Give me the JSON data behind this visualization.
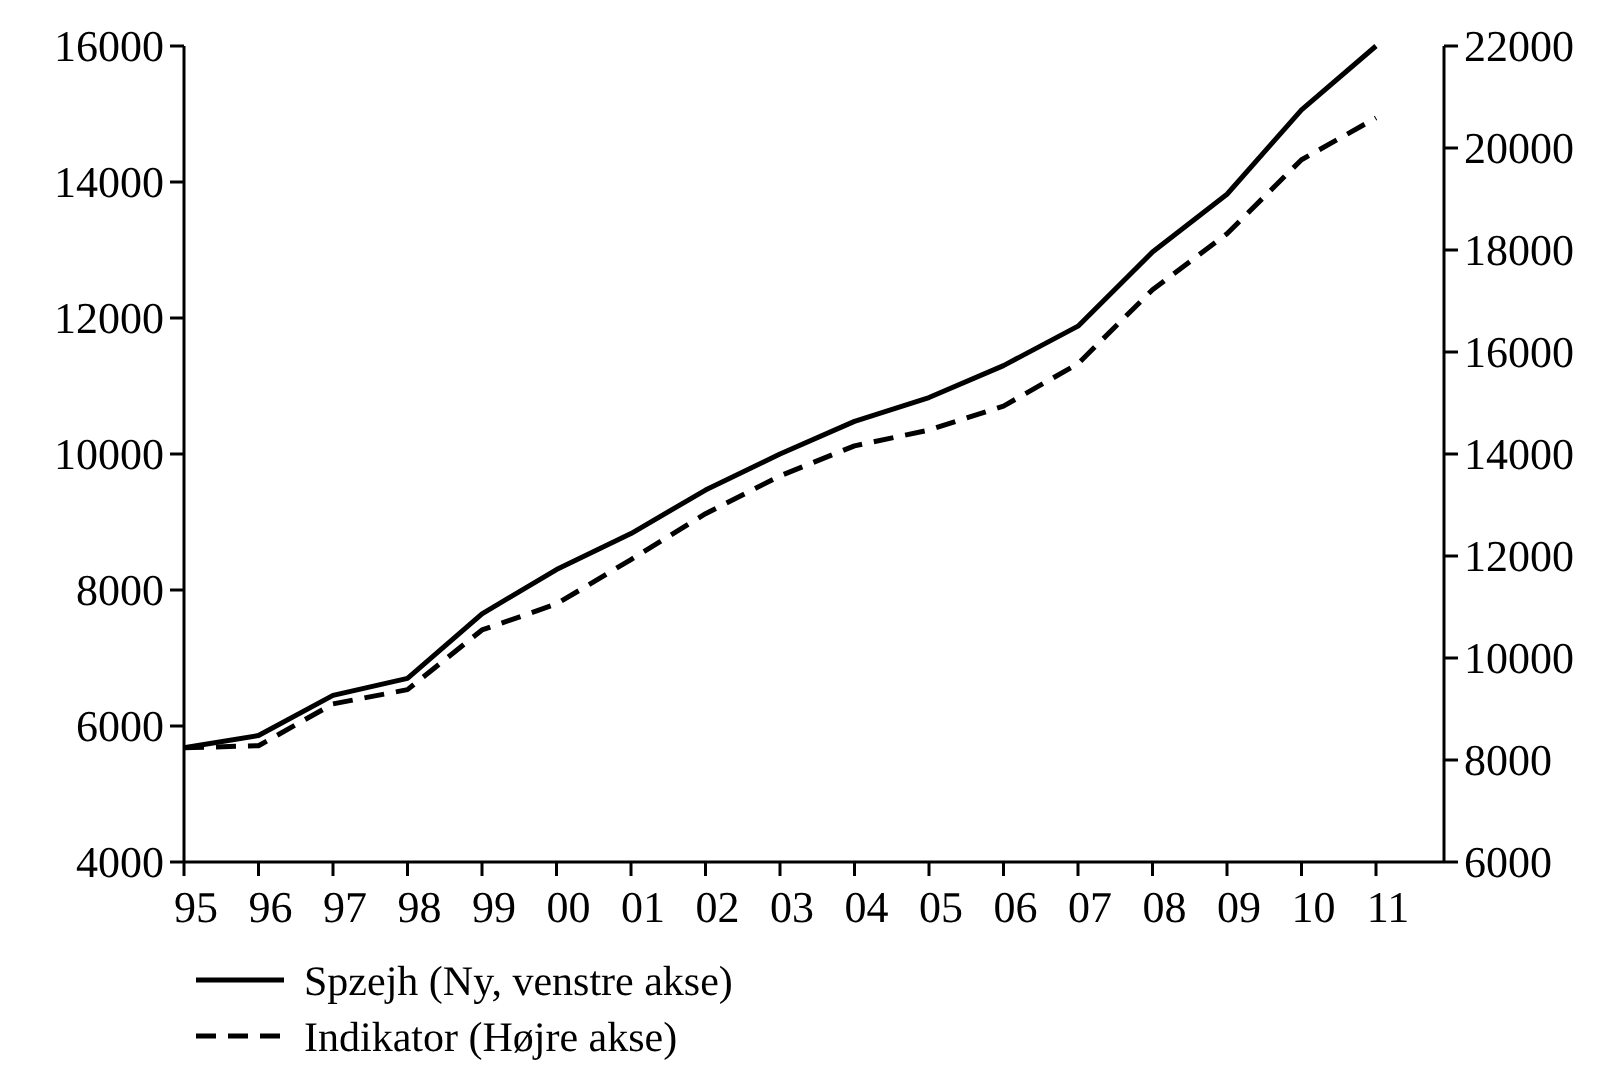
{
  "chart_data": {
    "type": "line",
    "categories": [
      "95",
      "96",
      "97",
      "98",
      "99",
      "00",
      "01",
      "02",
      "03",
      "04",
      "05",
      "06",
      "07",
      "08",
      "09",
      "10",
      "11"
    ],
    "series": [
      {
        "name": "Spzejh (Ny, venstre akse)",
        "color": "#000000",
        "line_style": "solid",
        "values": [
          5680,
          5860,
          6450,
          6700,
          7650,
          8300,
          8830,
          9470,
          10000,
          10480,
          10830,
          11300,
          11880,
          12970,
          13820,
          15060,
          16000
        ]
      },
      {
        "name": "Indikator (Højre akse)",
        "color": "#000000",
        "line_style": "dashed",
        "axis": "y2",
        "values": [
          8240,
          8280,
          9100,
          9380,
          10550,
          11060,
          11930,
          12830,
          13570,
          14160,
          14470,
          14940,
          15770,
          17220,
          18320,
          19770,
          20590
        ]
      }
    ],
    "ylim": [
      4000,
      16000
    ],
    "yticks": [
      4000,
      6000,
      8000,
      10000,
      12000,
      14000,
      16000
    ],
    "y2lim": [
      6000,
      22000
    ],
    "y2ticks": [
      6000,
      8000,
      10000,
      12000,
      14000,
      16000,
      18000,
      20000,
      22000
    ],
    "grid": false,
    "legend": "bottom",
    "marker": "none"
  }
}
